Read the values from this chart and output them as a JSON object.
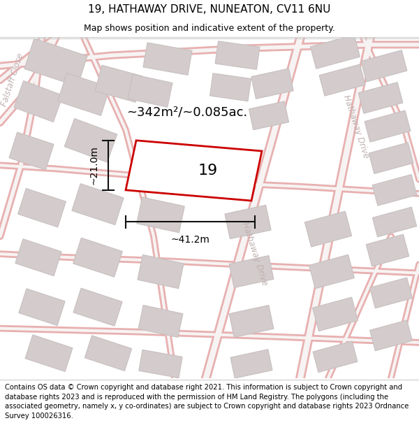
{
  "title_line1": "19, HATHAWAY DRIVE, NUNEATON, CV11 6NU",
  "title_line2": "Map shows position and indicative extent of the property.",
  "footer_text": "Contains OS data © Crown copyright and database right 2021. This information is subject to Crown copyright and database rights 2023 and is reproduced with the permission of HM Land Registry. The polygons (including the associated geometry, namely x, y co-ordinates) are subject to Crown copyright and database rights 2023 Ordnance Survey 100026316.",
  "area_label": "~342m²/~0.085ac.",
  "plot_number": "19",
  "width_label": "~41.2m",
  "height_label": "~21.0m",
  "map_bg": "#f7f3f3",
  "road_outer_color": "#e8b0b0",
  "road_inner_color": "#f7f3f3",
  "building_fc": "#d4cccc",
  "building_ec": "#c8c0c0",
  "plot_edge_color": "#cc0000",
  "plot_fill_color": "#ffffff",
  "dim_line_color": "#111111",
  "street_label_color": "#c0b0b0",
  "title_fontsize": 11,
  "subtitle_fontsize": 9,
  "footer_fontsize": 7.2,
  "area_label_fontsize": 13,
  "plot_number_fontsize": 16,
  "dim_label_fontsize": 10,
  "street_label_fontsize": 8.5
}
